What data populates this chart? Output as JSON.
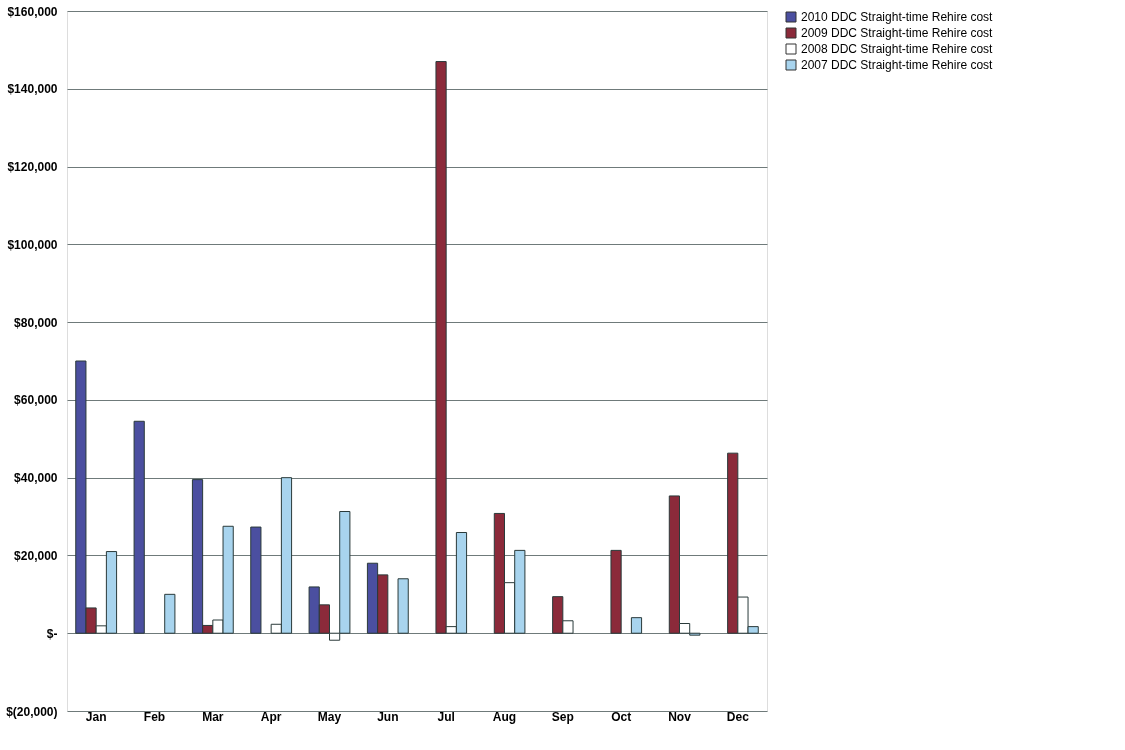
{
  "chart_data": {
    "type": "bar",
    "categories": [
      "Jan",
      "Feb",
      "Mar",
      "Apr",
      "May",
      "Jun",
      "Jul",
      "Aug",
      "Sep",
      "Oct",
      "Nov",
      "Dec"
    ],
    "series": [
      {
        "name": "2010 DDC Straight-time Rehire cost",
        "color": "#4b4fa0",
        "values": [
          70000,
          54500,
          39500,
          27300,
          11900,
          18000,
          null,
          null,
          null,
          null,
          null,
          null
        ]
      },
      {
        "name": "2009 DDC Straight-time Rehire cost",
        "color": "#8b2a3a",
        "values": [
          6500,
          null,
          2000,
          null,
          7300,
          15000,
          147000,
          30800,
          9400,
          21300,
          35300,
          46300
        ]
      },
      {
        "name": "2008 DDC Straight-time Rehire cost",
        "color": "#ffffff",
        "values": [
          1900,
          null,
          3400,
          2300,
          -1800,
          null,
          1700,
          13000,
          3200,
          null,
          2500,
          9300
        ]
      },
      {
        "name": "2007 DDC Straight-time Rehire cost",
        "color": "#a8d4ee",
        "values": [
          21000,
          10000,
          27500,
          40000,
          31300,
          14000,
          25900,
          21300,
          null,
          4000,
          -500,
          1700
        ]
      }
    ],
    "ylim": [
      -20000,
      160000
    ],
    "yticks": [
      {
        "value": -20000,
        "label": "$(20,000)"
      },
      {
        "value": 0,
        "label": "$-"
      },
      {
        "value": 20000,
        "label": "$20,000"
      },
      {
        "value": 40000,
        "label": "$40,000"
      },
      {
        "value": 60000,
        "label": "$60,000"
      },
      {
        "value": 80000,
        "label": "$80,000"
      },
      {
        "value": 100000,
        "label": "$100,000"
      },
      {
        "value": 120000,
        "label": "$120,000"
      },
      {
        "value": 140000,
        "label": "$140,000"
      },
      {
        "value": 160000,
        "label": "$160,000"
      }
    ],
    "grid": "y",
    "legend": "right"
  }
}
